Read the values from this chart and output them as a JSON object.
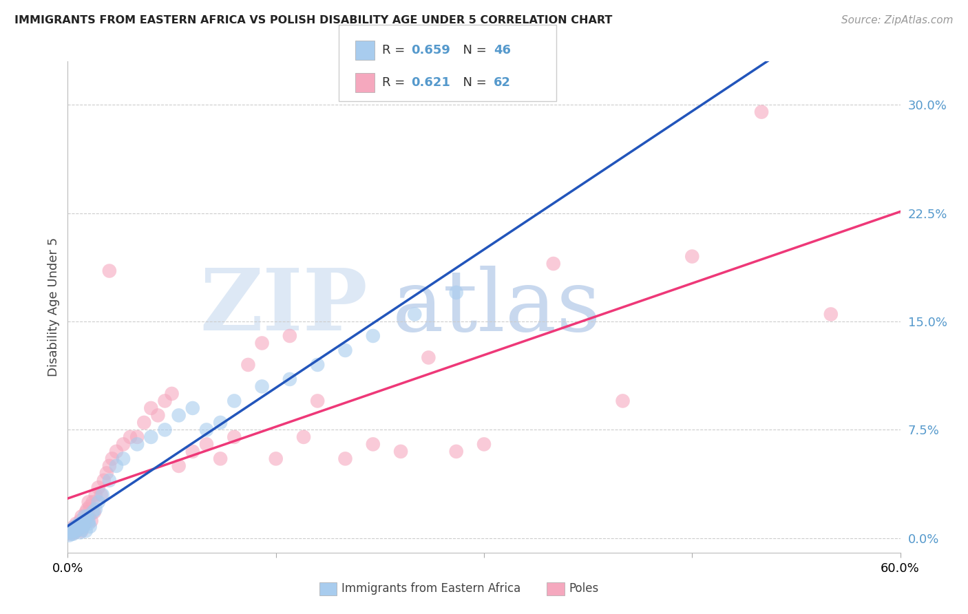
{
  "title": "IMMIGRANTS FROM EASTERN AFRICA VS POLISH DISABILITY AGE UNDER 5 CORRELATION CHART",
  "source": "Source: ZipAtlas.com",
  "ylabel": "Disability Age Under 5",
  "ytick_vals": [
    0.0,
    7.5,
    15.0,
    22.5,
    30.0
  ],
  "ytick_labels": [
    "0.0%",
    "7.5%",
    "15.0%",
    "22.5%",
    "30.0%"
  ],
  "xlim": [
    0.0,
    60.0
  ],
  "ylim": [
    -1.0,
    33.0
  ],
  "legend_blue_r": "0.659",
  "legend_blue_n": "46",
  "legend_pink_r": "0.621",
  "legend_pink_n": "62",
  "blue_color": "#A8CCEE",
  "pink_color": "#F5A8BE",
  "blue_line_color": "#2255BB",
  "pink_line_color": "#EE3878",
  "blue_dash_color": "#8AAECC",
  "blue_scatter_x": [
    0.1,
    0.2,
    0.3,
    0.4,
    0.5,
    0.5,
    0.6,
    0.7,
    0.8,
    0.9,
    1.0,
    1.0,
    1.1,
    1.2,
    1.3,
    1.4,
    1.5,
    1.6,
    1.8,
    2.0,
    2.2,
    2.5,
    3.0,
    3.5,
    4.0,
    5.0,
    6.0,
    7.0,
    8.0,
    9.0,
    10.0,
    11.0,
    12.0,
    14.0,
    16.0,
    18.0,
    20.0,
    22.0,
    25.0,
    28.0,
    0.3,
    0.4,
    0.6,
    0.8,
    1.2,
    1.5
  ],
  "blue_scatter_y": [
    0.2,
    0.4,
    0.5,
    0.3,
    0.6,
    0.8,
    0.5,
    0.7,
    0.9,
    0.4,
    1.0,
    0.6,
    0.8,
    1.2,
    0.5,
    1.5,
    1.0,
    0.8,
    1.8,
    2.0,
    2.5,
    3.0,
    4.0,
    5.0,
    5.5,
    6.5,
    7.0,
    7.5,
    8.5,
    9.0,
    7.5,
    8.0,
    9.5,
    10.5,
    11.0,
    12.0,
    13.0,
    14.0,
    15.5,
    17.0,
    0.3,
    0.5,
    0.6,
    1.0,
    1.5,
    1.2
  ],
  "pink_scatter_x": [
    0.1,
    0.2,
    0.3,
    0.4,
    0.5,
    0.6,
    0.7,
    0.8,
    0.9,
    1.0,
    1.0,
    1.1,
    1.2,
    1.3,
    1.4,
    1.5,
    1.6,
    1.7,
    1.8,
    1.9,
    2.0,
    2.2,
    2.4,
    2.6,
    2.8,
    3.0,
    3.2,
    3.5,
    4.0,
    4.5,
    5.0,
    5.5,
    6.0,
    6.5,
    7.0,
    7.5,
    8.0,
    9.0,
    10.0,
    11.0,
    12.0,
    13.0,
    14.0,
    15.0,
    16.0,
    17.0,
    18.0,
    20.0,
    22.0,
    24.0,
    26.0,
    28.0,
    30.0,
    35.0,
    40.0,
    45.0,
    50.0,
    55.0,
    0.5,
    0.8,
    1.5,
    3.0
  ],
  "pink_scatter_y": [
    0.3,
    0.5,
    0.7,
    0.4,
    0.8,
    1.0,
    0.6,
    0.9,
    1.2,
    0.5,
    1.5,
    0.8,
    1.0,
    1.8,
    2.0,
    1.5,
    2.2,
    1.2,
    2.5,
    1.8,
    3.0,
    3.5,
    3.0,
    4.0,
    4.5,
    5.0,
    5.5,
    6.0,
    6.5,
    7.0,
    7.0,
    8.0,
    9.0,
    8.5,
    9.5,
    10.0,
    5.0,
    6.0,
    6.5,
    5.5,
    7.0,
    12.0,
    13.5,
    5.5,
    14.0,
    7.0,
    9.5,
    5.5,
    6.5,
    6.0,
    12.5,
    6.0,
    6.5,
    19.0,
    9.5,
    19.5,
    29.5,
    15.5,
    0.4,
    0.7,
    2.5,
    18.5
  ]
}
